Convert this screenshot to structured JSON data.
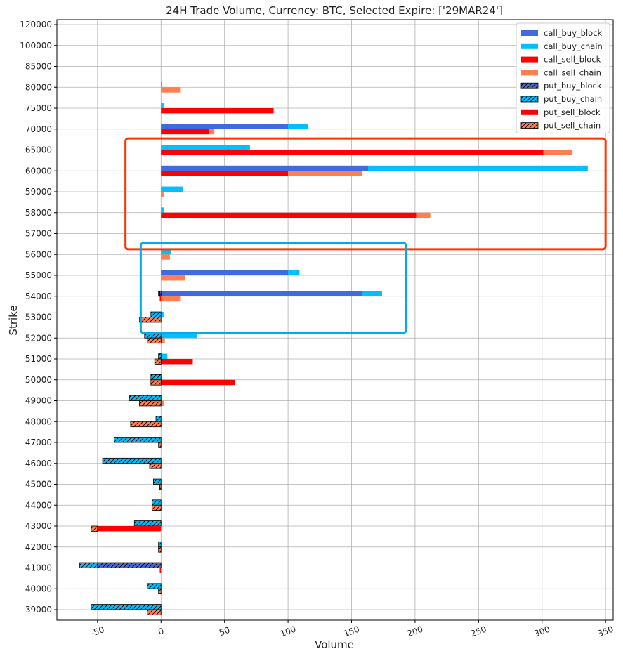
{
  "chart_data": {
    "type": "bar",
    "orientation": "horizontal",
    "title": "24H Trade Volume, Currency: BTC, Selected Expire: ['29MAR24']",
    "xlabel": "Volume",
    "ylabel": "Strike",
    "xlim": [
      -82,
      356
    ],
    "x_ticks": [
      -50,
      0,
      50,
      100,
      150,
      200,
      250,
      300,
      350
    ],
    "x_tick_labels": [
      "-50",
      "0",
      "50",
      "100",
      "150",
      "200",
      "250",
      "300",
      "350"
    ],
    "categories": [
      "39000",
      "40000",
      "41000",
      "42000",
      "43000",
      "44000",
      "45000",
      "46000",
      "47000",
      "48000",
      "49000",
      "50000",
      "51000",
      "52000",
      "53000",
      "54000",
      "55000",
      "56000",
      "57000",
      "58000",
      "59000",
      "60000",
      "65000",
      "70000",
      "75000",
      "80000",
      "85000",
      "100000",
      "120000"
    ],
    "grid": true,
    "legend_position": "upper-right",
    "series": [
      {
        "name": "call_buy_block",
        "color": "#4169e1",
        "hatch": false,
        "values": [
          0,
          0,
          0,
          0,
          0,
          0,
          0,
          0,
          0,
          0,
          0,
          0,
          0,
          0,
          0,
          158,
          100,
          0,
          0,
          0,
          0,
          163,
          0,
          100,
          0,
          0,
          0,
          0,
          0
        ]
      },
      {
        "name": "call_buy_chain",
        "color": "#00bfff",
        "hatch": false,
        "values": [
          0,
          0,
          0,
          0,
          0,
          0,
          0,
          0,
          0,
          0,
          0,
          0,
          5,
          28,
          2,
          16,
          9,
          8,
          0,
          2,
          17,
          173,
          70,
          16,
          2,
          1,
          0,
          0,
          0
        ]
      },
      {
        "name": "call_sell_block",
        "color": "#ff0000",
        "hatch": false,
        "values": [
          0,
          0,
          0,
          0,
          0,
          0,
          0,
          0,
          0,
          0,
          0,
          58,
          25,
          0,
          0,
          0,
          0,
          0,
          0,
          201,
          0,
          100,
          301,
          38,
          88,
          0,
          0,
          0,
          0
        ]
      },
      {
        "name": "call_sell_chain",
        "color": "#ff7f50",
        "hatch": false,
        "values": [
          0,
          0,
          0,
          0,
          0,
          0,
          0,
          0,
          0,
          0,
          2,
          0,
          0,
          3,
          0,
          15,
          19,
          7,
          0,
          11,
          2,
          58,
          23,
          4,
          1,
          15,
          0,
          0,
          0
        ]
      },
      {
        "name": "put_buy_block",
        "color": "#4169e1",
        "hatch": true,
        "values": [
          0,
          0,
          -50,
          0,
          0,
          0,
          0,
          0,
          0,
          0,
          0,
          0,
          0,
          0,
          0,
          -1,
          0,
          0,
          0,
          0,
          0,
          0,
          0,
          0,
          0,
          0,
          0,
          0,
          0
        ]
      },
      {
        "name": "put_buy_chain",
        "color": "#00bfff",
        "hatch": true,
        "values": [
          -55,
          -11,
          -14,
          -2,
          -21,
          -7,
          -6,
          -46,
          -37,
          -4,
          -25,
          -8,
          -2,
          -13,
          -8,
          -1,
          0,
          0,
          0,
          0,
          0,
          0,
          0,
          0,
          0,
          0,
          0,
          0,
          0
        ]
      },
      {
        "name": "put_sell_block",
        "color": "#ff0000",
        "hatch": false,
        "values": [
          0,
          0,
          -1,
          0,
          -50,
          0,
          0,
          0,
          0,
          0,
          0,
          0,
          0,
          0,
          0,
          -1,
          0,
          0,
          0,
          0,
          0,
          0,
          0,
          0,
          0,
          0,
          0,
          0,
          0
        ]
      },
      {
        "name": "put_sell_chain",
        "color": "#ff7f50",
        "hatch": true,
        "values": [
          -11,
          -2,
          0,
          -2,
          -5,
          -7,
          -1,
          -9,
          -2,
          -24,
          -17,
          -8,
          -5,
          -11,
          -17,
          0,
          0,
          0,
          0,
          0,
          0,
          0,
          0,
          0,
          0,
          0,
          0,
          0,
          0
        ]
      }
    ],
    "annotations": [
      {
        "type": "rectangle",
        "color": "#ff3300",
        "x_range": [
          -28,
          350
        ],
        "category_range": [
          "57000",
          "65000"
        ]
      },
      {
        "type": "rectangle",
        "color": "#00aaee",
        "x_range": [
          -16,
          193
        ],
        "category_range": [
          "53000",
          "56000"
        ]
      }
    ]
  }
}
